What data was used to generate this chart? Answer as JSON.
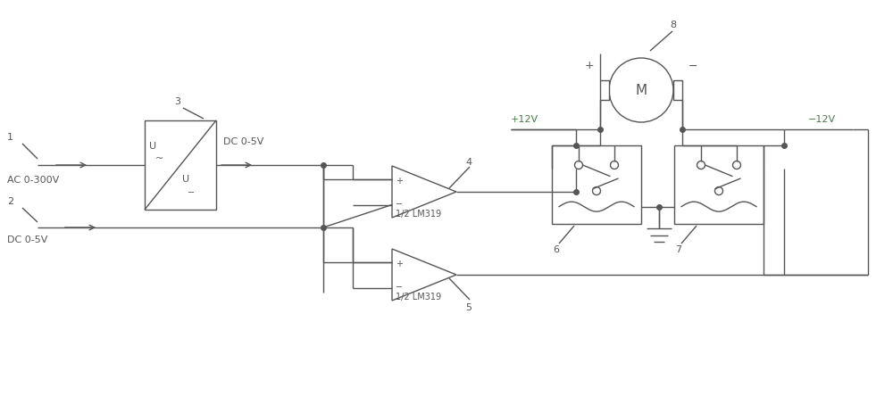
{
  "bg_color": "#ffffff",
  "line_color": "#555555",
  "green_color": "#4a7a4a",
  "olive_color": "#7a7a00",
  "fig_width": 10.0,
  "fig_height": 4.64,
  "dpi": 100,
  "xlim": [
    0,
    10
  ],
  "ylim": [
    0,
    4.64
  ]
}
